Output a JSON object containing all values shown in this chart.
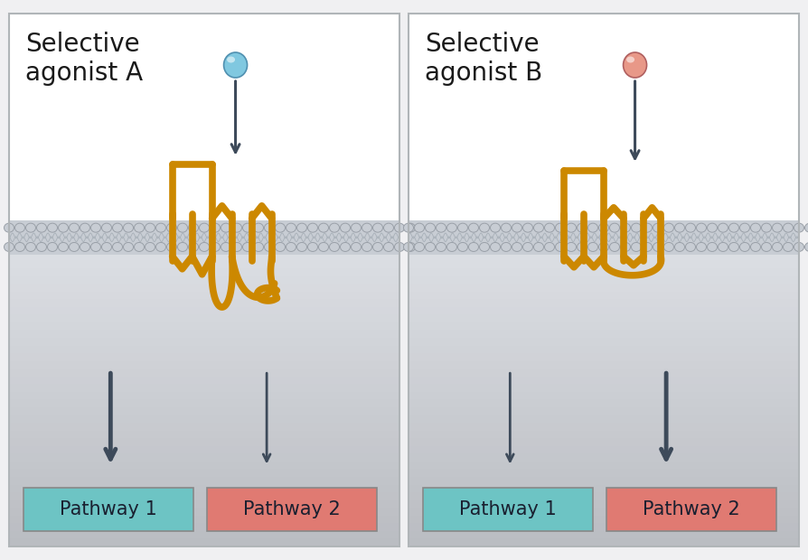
{
  "bg_color": "#f0f0f2",
  "panel_border_color": "#b0b5b8",
  "cell_bg_top": "#ffffff",
  "cell_bg_bottom_dark": "#b8bfc8",
  "cell_bg_bottom_light": "#d8dde4",
  "membrane_head_color": "#c0c5cc",
  "membrane_head_edge": "#a0a8b0",
  "receptor_color": "#cc8800",
  "receptor_lw": 5.5,
  "arrow_color": "#3d4a5a",
  "pathway1_color": "#6dc4c4",
  "pathway2_color": "#e07a72",
  "pathway_border": "#888888",
  "pathway_text_color": "#1a2030",
  "text_color": "#1a1a1a",
  "title_fontsize": 20,
  "pathway_fontsize": 15,
  "agonist_a_color": "#80c8e0",
  "agonist_a_edge": "#5090b0",
  "agonist_b_color": "#e89888",
  "agonist_b_edge": "#b06060",
  "panel1_line1": "Selective",
  "panel1_line2": "agonist A",
  "panel2_line1": "Selective",
  "panel2_line2": "agonist B",
  "pathway1_label": "Pathway 1",
  "pathway2_label": "Pathway 2"
}
